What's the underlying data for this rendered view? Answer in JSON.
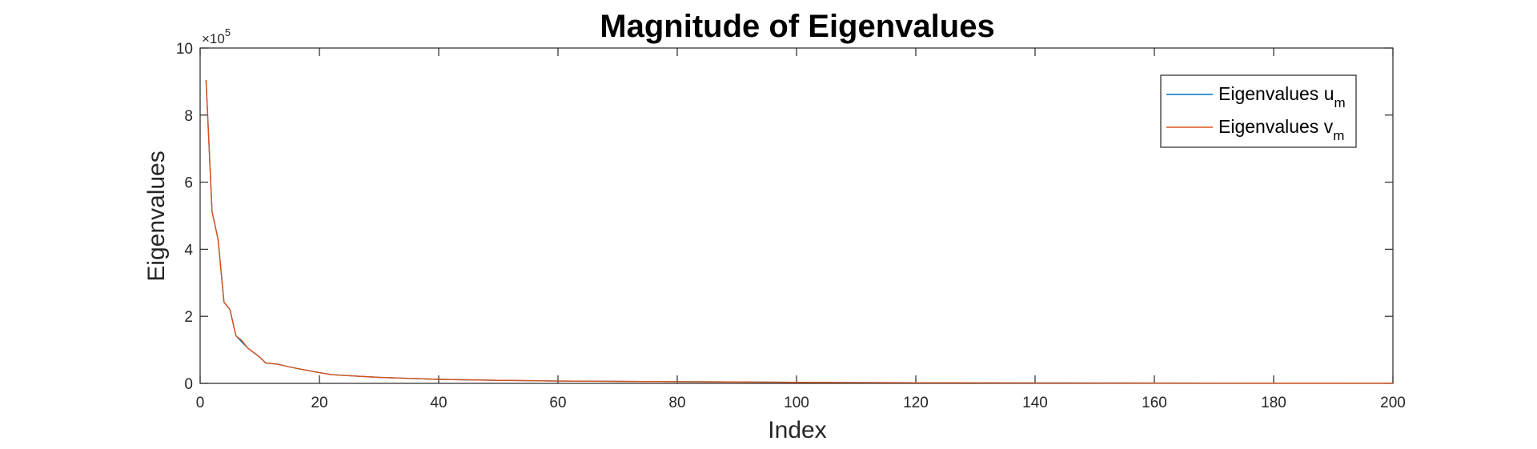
{
  "chart_data": {
    "type": "line",
    "title": "Magnitude of Eigenvalues",
    "xlabel": "Index",
    "ylabel": "Eigenvalues",
    "xlim": [
      0,
      200
    ],
    "ylim": [
      0,
      1000000
    ],
    "x_ticks": [
      0,
      20,
      40,
      60,
      80,
      100,
      120,
      140,
      160,
      180,
      200
    ],
    "y_ticks": [
      0,
      2,
      4,
      6,
      8,
      10
    ],
    "y_exponent": {
      "base": "×10",
      "power": "5"
    },
    "grid": false,
    "legend_position": "top-right",
    "series": [
      {
        "name": "Eigenvalues u",
        "name_subscript": "m",
        "color": "#0072BD",
        "x": [
          1,
          2,
          3,
          4,
          5,
          6,
          8,
          10,
          11,
          13,
          15,
          17,
          20,
          22,
          25,
          30,
          40,
          50,
          60,
          80,
          100,
          120,
          150,
          200
        ],
        "values": [
          904000,
          512000,
          430000,
          242000,
          220000,
          142000,
          105000,
          78000,
          61000,
          57000,
          49000,
          42000,
          32000,
          26000,
          23000,
          18000,
          12000,
          9000,
          7000,
          5000,
          3000,
          2000,
          1000,
          500
        ]
      },
      {
        "name": "Eigenvalues v",
        "name_subscript": "m",
        "color": "#D95319",
        "x": [
          1,
          2,
          3,
          4,
          5,
          6,
          7,
          8,
          9,
          10,
          11,
          13,
          15,
          17,
          20,
          22,
          25,
          30,
          35,
          40,
          50,
          60,
          70,
          80,
          100,
          120,
          150,
          200
        ],
        "values": [
          904000,
          512000,
          430000,
          242000,
          220000,
          142000,
          128000,
          105000,
          92000,
          78000,
          61000,
          57000,
          49000,
          42000,
          32000,
          26000,
          23000,
          18000,
          15000,
          12000,
          9000,
          7000,
          6000,
          5000,
          3000,
          2000,
          1000,
          500
        ]
      }
    ]
  }
}
